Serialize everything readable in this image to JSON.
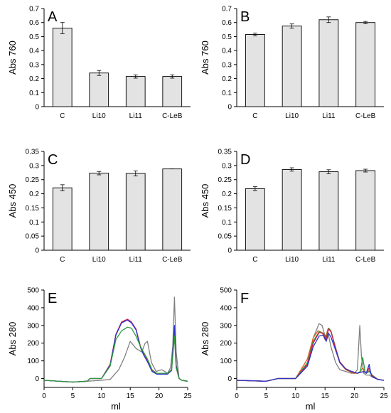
{
  "chart_data": [
    {
      "type": "bar",
      "panel": "A",
      "ylabel": "Abs 760",
      "categories": [
        "C",
        "Li10",
        "Li11",
        "C-LeB"
      ],
      "values": [
        0.56,
        0.24,
        0.215,
        0.215
      ],
      "errors": [
        0.04,
        0.018,
        0.012,
        0.012
      ],
      "ylim": [
        0,
        0.7
      ],
      "yticks": [
        0,
        0.1,
        0.2,
        0.3,
        0.4,
        0.5,
        0.6,
        0.7
      ],
      "ytick_labels": [
        "0",
        "0.1",
        "0.2",
        "0.3",
        "0.4",
        "0.5",
        "0.6",
        "0.7"
      ],
      "grid": false
    },
    {
      "type": "bar",
      "panel": "B",
      "ylabel": "Abs 760",
      "categories": [
        "C",
        "Li10",
        "Li11",
        "C-LeB"
      ],
      "values": [
        0.515,
        0.575,
        0.62,
        0.6
      ],
      "errors": [
        0.01,
        0.015,
        0.02,
        0.008
      ],
      "ylim": [
        0,
        0.7
      ],
      "yticks": [
        0,
        0.1,
        0.2,
        0.3,
        0.4,
        0.5,
        0.6,
        0.7
      ],
      "ytick_labels": [
        "0",
        "0.1",
        "0.2",
        "0.3",
        "0.4",
        "0.5",
        "0.6",
        "0.7"
      ],
      "grid": false
    },
    {
      "type": "bar",
      "panel": "C",
      "ylabel": "Abs 450",
      "categories": [
        "C",
        "Li10",
        "Li11",
        "C-LeB"
      ],
      "values": [
        0.221,
        0.273,
        0.272,
        0.288
      ],
      "errors": [
        0.011,
        0.006,
        0.009,
        0.0
      ],
      "ylim": [
        0,
        0.35
      ],
      "yticks": [
        0,
        0.05,
        0.1,
        0.15,
        0.2,
        0.25,
        0.3,
        0.35
      ],
      "ytick_labels": [
        "0",
        "0.05",
        "0.1",
        "0.15",
        "0.2",
        "0.25",
        "0.3",
        "0.35"
      ],
      "grid": false
    },
    {
      "type": "bar",
      "panel": "D",
      "ylabel": "Abs 450",
      "categories": [
        "C",
        "Li10",
        "Li11",
        "C-LeB"
      ],
      "values": [
        0.218,
        0.286,
        0.278,
        0.282
      ],
      "errors": [
        0.007,
        0.006,
        0.007,
        0.005
      ],
      "ylim": [
        0,
        0.35
      ],
      "yticks": [
        0,
        0.05,
        0.1,
        0.15,
        0.2,
        0.25,
        0.3,
        0.35
      ],
      "ytick_labels": [
        "0",
        "0.05",
        "0.1",
        "0.15",
        "0.2",
        "0.25",
        "0.3",
        "0.35"
      ],
      "grid": false
    },
    {
      "type": "line",
      "panel": "E",
      "ylabel": "Abs 280",
      "xlabel": "ml",
      "xlim": [
        0,
        25
      ],
      "ylim": [
        -50,
        500
      ],
      "xticks": [
        0,
        5,
        10,
        15,
        20,
        25
      ],
      "yticks": [
        0,
        100,
        200,
        300,
        400,
        500
      ],
      "ytick_labels": [
        "0",
        "100",
        "200",
        "300",
        "400",
        "500"
      ],
      "grid": false,
      "series": [
        {
          "color": "#808080",
          "x": [
            0,
            5,
            7.5,
            10,
            11.5,
            13,
            14,
            15,
            16,
            17,
            17.6,
            18,
            18.7,
            19.5,
            20,
            20.5,
            21,
            21.5,
            22,
            22.4,
            22.7,
            23,
            23.5,
            24,
            25
          ],
          "y": [
            -10,
            -20,
            -15,
            -10,
            -5,
            50,
            120,
            210,
            170,
            150,
            200,
            210,
            90,
            40,
            45,
            50,
            40,
            30,
            60,
            180,
            460,
            150,
            0,
            -10,
            -15
          ]
        },
        {
          "color": "#d41c4e",
          "x": [
            0,
            5,
            7.5,
            8,
            10,
            11.5,
            12.5,
            13.5,
            14.5,
            15.2,
            16,
            16.8,
            17.3,
            18,
            18.8,
            19.6,
            20.5,
            21.5,
            22.2,
            22.7,
            23,
            23.5,
            24,
            25
          ],
          "y": [
            -10,
            -20,
            -15,
            0,
            0,
            80,
            250,
            320,
            335,
            320,
            280,
            180,
            140,
            100,
            45,
            30,
            30,
            30,
            50,
            290,
            80,
            0,
            -10,
            -15
          ]
        },
        {
          "color": "#2a36c8",
          "x": [
            0,
            5,
            7.5,
            8,
            10,
            11.5,
            12.5,
            13.5,
            14.5,
            15.2,
            16,
            16.8,
            17.3,
            18,
            18.8,
            19.6,
            20.5,
            21.5,
            22.2,
            22.7,
            23,
            23.5,
            24,
            25
          ],
          "y": [
            -10,
            -20,
            -15,
            0,
            0,
            75,
            245,
            315,
            330,
            315,
            275,
            175,
            135,
            95,
            40,
            25,
            25,
            25,
            45,
            300,
            70,
            0,
            -10,
            -15
          ]
        },
        {
          "color": "#2a9a3a",
          "x": [
            0,
            5,
            7.5,
            8,
            10,
            11.5,
            12.5,
            13.5,
            14.5,
            15.2,
            16,
            16.8,
            17.3,
            18,
            18.8,
            19.6,
            20.5,
            21.5,
            22.2,
            22.7,
            23,
            23.5,
            24,
            25
          ],
          "y": [
            -10,
            -20,
            -15,
            0,
            0,
            70,
            220,
            270,
            290,
            285,
            240,
            180,
            150,
            110,
            50,
            30,
            30,
            30,
            50,
            240,
            60,
            0,
            -10,
            -15
          ]
        }
      ]
    },
    {
      "type": "line",
      "panel": "F",
      "ylabel": "Abs 280",
      "xlabel": "ml",
      "xlim": [
        0,
        25
      ],
      "ylim": [
        -50,
        500
      ],
      "xticks": [
        0,
        5,
        10,
        15,
        20,
        25
      ],
      "yticks": [
        0,
        100,
        200,
        300,
        400,
        500
      ],
      "ytick_labels": [
        "0",
        "100",
        "200",
        "300",
        "400",
        "500"
      ],
      "grid": false,
      "series": [
        {
          "color": "#808080",
          "x": [
            0,
            5,
            7,
            10,
            12,
            13,
            14,
            14.5,
            15,
            15.5,
            16,
            16.8,
            17.5,
            18.5,
            19.5,
            20,
            20.5,
            20.9,
            21.2,
            21.6,
            22,
            22.5,
            23,
            24,
            25
          ],
          "y": [
            -10,
            -15,
            0,
            0,
            80,
            230,
            310,
            300,
            240,
            260,
            180,
            90,
            50,
            40,
            30,
            30,
            50,
            300,
            120,
            30,
            20,
            20,
            10,
            -5,
            -10
          ]
        },
        {
          "color": "#e05a1e",
          "x": [
            0,
            5,
            7,
            10,
            12,
            13,
            13.8,
            14.5,
            15,
            15.5,
            16,
            16.8,
            17.5,
            18.5,
            19.5,
            20,
            20.5,
            21,
            21.4,
            21.8,
            22,
            22.5,
            23,
            24,
            25
          ],
          "y": [
            -10,
            -15,
            0,
            0,
            110,
            230,
            270,
            260,
            220,
            280,
            270,
            170,
            90,
            50,
            35,
            30,
            30,
            40,
            60,
            40,
            30,
            45,
            20,
            -5,
            -10
          ]
        },
        {
          "color": "#2a9a3a",
          "x": [
            0,
            5,
            7,
            10,
            12,
            13,
            14,
            14.7,
            15.2,
            15.6,
            16,
            16.8,
            17.5,
            18.5,
            19.5,
            20,
            20.5,
            21,
            21.4,
            21.8,
            22,
            22.5,
            23,
            24,
            25
          ],
          "y": [
            -10,
            -15,
            0,
            0,
            90,
            210,
            265,
            255,
            230,
            285,
            270,
            175,
            95,
            55,
            40,
            35,
            30,
            40,
            120,
            40,
            30,
            40,
            20,
            -5,
            -10
          ]
        },
        {
          "color": "#d41c4e",
          "x": [
            0,
            5,
            7,
            10,
            12,
            13,
            14,
            14.7,
            15.2,
            15.6,
            16,
            16.8,
            17.5,
            18.5,
            19.5,
            20,
            20.5,
            21,
            21.6,
            22,
            22.5,
            22.8,
            23,
            24,
            25
          ],
          "y": [
            -10,
            -15,
            0,
            0,
            80,
            200,
            260,
            255,
            220,
            280,
            265,
            170,
            95,
            55,
            40,
            35,
            30,
            35,
            40,
            30,
            60,
            30,
            15,
            -5,
            -10
          ]
        },
        {
          "color": "#2a36c8",
          "x": [
            0,
            5,
            7,
            10,
            12,
            13,
            14,
            14.7,
            15.2,
            15.6,
            16,
            16.8,
            17.5,
            18.5,
            19.5,
            20,
            20.5,
            21,
            21.6,
            22,
            22.5,
            22.8,
            23,
            24,
            25
          ],
          "y": [
            -10,
            -15,
            0,
            0,
            70,
            180,
            240,
            245,
            210,
            255,
            235,
            160,
            90,
            55,
            40,
            35,
            30,
            35,
            40,
            30,
            80,
            25,
            10,
            -5,
            -10
          ]
        }
      ]
    }
  ]
}
